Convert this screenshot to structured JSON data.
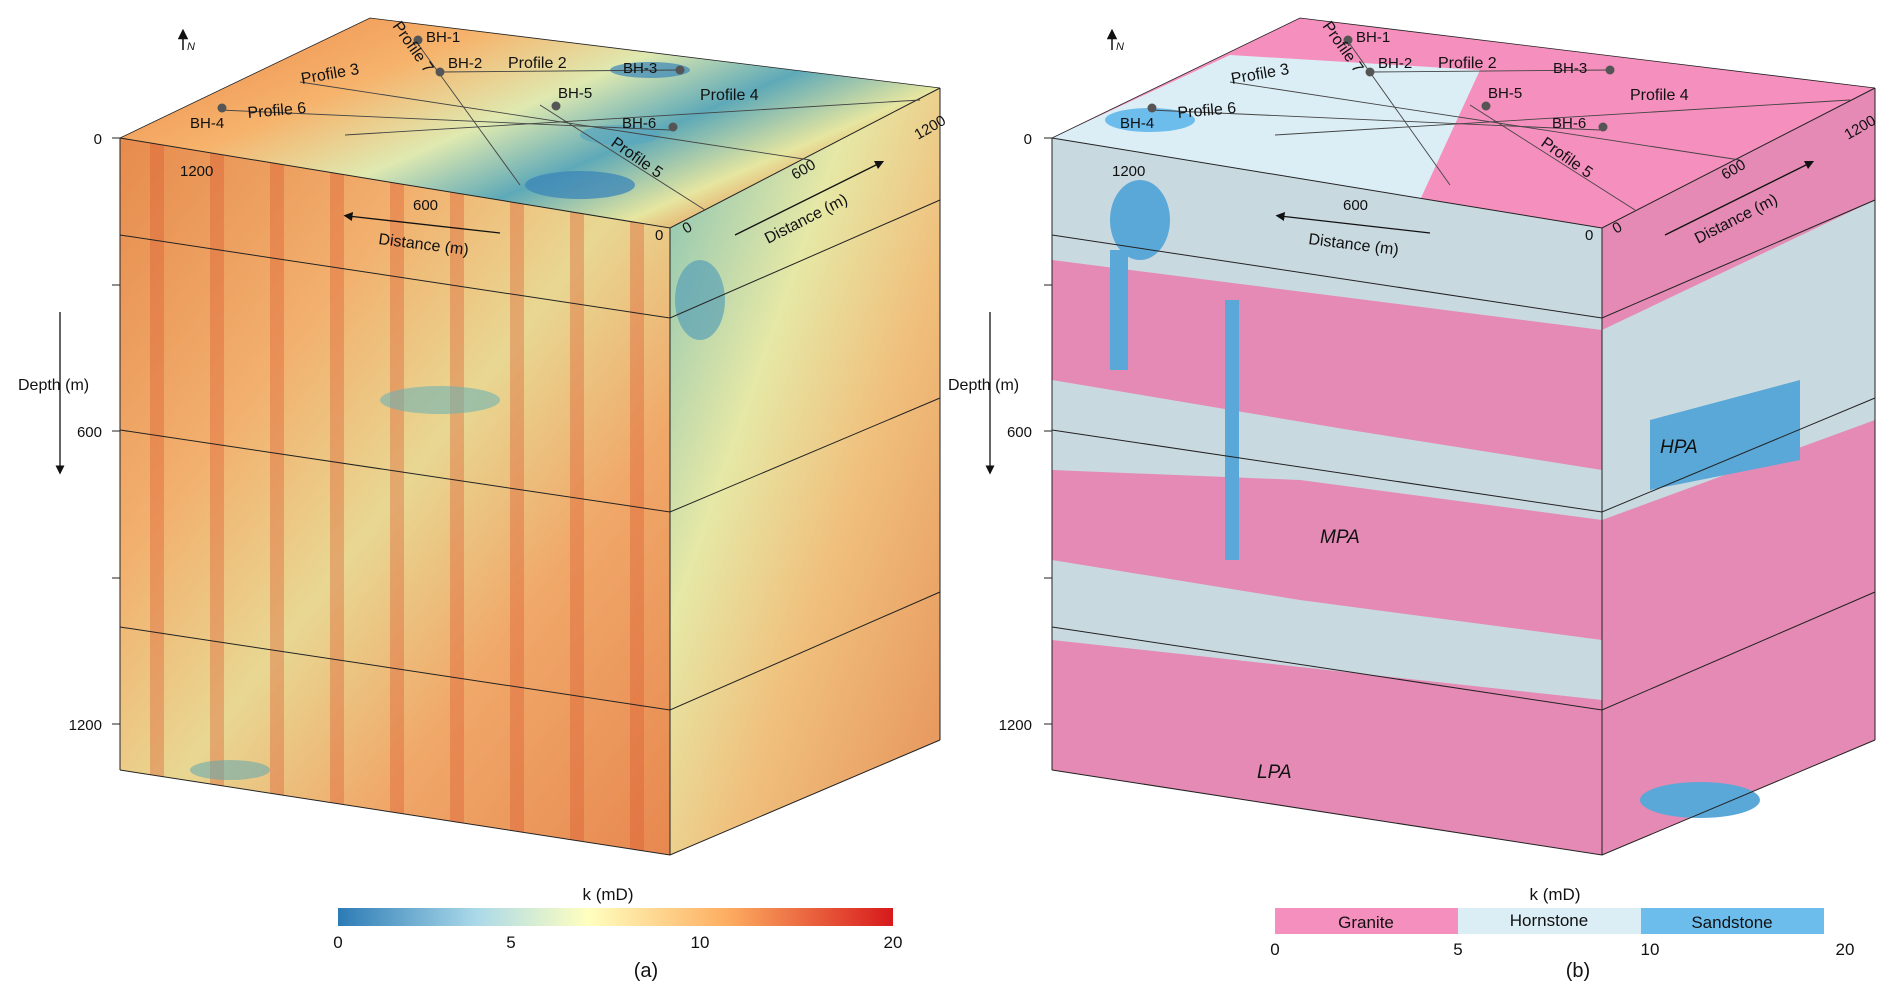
{
  "north_label": "N",
  "panel_a": {
    "caption": "(a)",
    "depth_label": "Depth (m)",
    "depth_ticks": [
      "0",
      "600",
      "1200"
    ],
    "top_x_label": "Distance (m)",
    "top_x_ticks": [
      "1200",
      "600",
      "0"
    ],
    "right_label": "Distance (m)",
    "right_ticks": [
      "0",
      "600",
      "1200"
    ],
    "colorbar_title": "k (mD)",
    "colorbar_ticks": [
      "0",
      "5",
      "10",
      "20"
    ],
    "colorbar_colors": [
      "#2c7bb6",
      "#abd9e9",
      "#ffffbf",
      "#fdae61",
      "#d7191c"
    ]
  },
  "panel_b": {
    "caption": "(b)",
    "depth_label": "Depth (m)",
    "depth_ticks": [
      "0",
      "600",
      "1200"
    ],
    "top_x_label": "Distance (m)",
    "top_x_ticks": [
      "1200",
      "600",
      "0"
    ],
    "right_label": "Distance (m)",
    "right_ticks": [
      "0",
      "600",
      "1200"
    ],
    "legend_title": "k (mD)",
    "legend_classes": [
      {
        "name": "Granite",
        "color": "#f58fbd"
      },
      {
        "name": "Hornstone",
        "color": "#dceef5"
      },
      {
        "name": "Sandstone",
        "color": "#6cbcec"
      }
    ],
    "legend_ticks": [
      "0",
      "5",
      "10",
      "20"
    ],
    "zone_labels": [
      "HPA",
      "MPA",
      "LPA"
    ]
  },
  "boreholes": [
    "BH-1",
    "BH-2",
    "BH-3",
    "BH-4",
    "BH-5",
    "BH-6"
  ],
  "profiles": [
    "Profile 2",
    "Profile 3",
    "Profile 4",
    "Profile 5",
    "Profile 6",
    "Profile 7"
  ]
}
